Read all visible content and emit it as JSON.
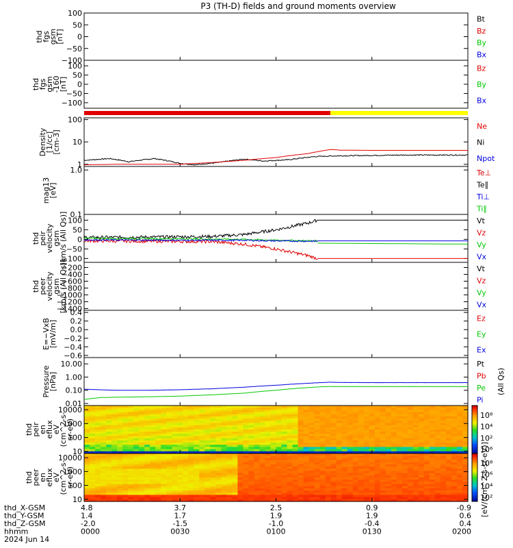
{
  "title": "P3 (TH-D) fields and ground moments overview",
  "colors": {
    "red": "#e00000",
    "green": "#00c800",
    "blue": "#0000e0",
    "black": "#000000",
    "yellow": "#ffff00",
    "cyan": "#00a0a0"
  },
  "chart_data": {
    "type": "line",
    "time": {
      "x_range": [
        0,
        120
      ],
      "unit": "minutes after 0000",
      "ticks": [
        0,
        30,
        60,
        90,
        120
      ],
      "tick_labels": [
        "0000",
        "0030",
        "0100",
        "0130",
        "0200"
      ]
    },
    "ephemeris": {
      "rows": [
        {
          "label": "thd_X-GSM",
          "values": [
            "4.8",
            "3.7",
            "2.5",
            "0.9",
            "-0.9"
          ]
        },
        {
          "label": "thd_Y-GSM",
          "values": [
            "1.4",
            "1.7",
            "1.9",
            "1.9",
            "0.6"
          ]
        },
        {
          "label": "thd_Z-GSM",
          "values": [
            "-2.0",
            "-1.5",
            "-1.0",
            "-0.4",
            "0.4"
          ]
        },
        {
          "label": "hhmm",
          "values": [
            "0000",
            "0030",
            "0100",
            "0130",
            "0200"
          ]
        }
      ],
      "date": "2024 Jun 14"
    },
    "panels": [
      {
        "id": "fgs",
        "ylabel": [
          "thd",
          "fgs",
          "gsm",
          "[nT]"
        ],
        "ylim": [
          -100,
          100
        ],
        "ticks": [
          100,
          50,
          0,
          -50,
          -100
        ],
        "tick_labels": [
          "100",
          "50",
          "0",
          "−50",
          "−100"
        ],
        "legend": [
          {
            "name": "Bt",
            "color": "black"
          },
          {
            "name": "Bz",
            "color": "red"
          },
          {
            "name": "By",
            "color": "green"
          },
          {
            "name": "Bx",
            "color": "blue"
          }
        ],
        "series": []
      },
      {
        "id": "fgs_detrend",
        "ylabel": [
          "thd",
          "fgs",
          "gsm",
          "-160",
          "[nT]"
        ],
        "ylim": [
          -130,
          130
        ],
        "ticks": [
          100,
          50,
          0,
          -50,
          -100
        ],
        "tick_labels": [
          "100",
          "50",
          "0",
          "−50",
          "−100"
        ],
        "legend": [
          {
            "name": "Bz",
            "color": "red"
          },
          {
            "name": "By",
            "color": "green"
          },
          {
            "name": "Bx",
            "color": "blue"
          }
        ],
        "series": []
      },
      {
        "id": "density",
        "ylabel": [
          "Density",
          "[1/cc]",
          "[cm-3]"
        ],
        "scale": "log",
        "ylim": [
          0.8,
          120
        ],
        "ticks": [
          100,
          10,
          1
        ],
        "tick_labels": [
          "100",
          "10",
          "1"
        ],
        "legend": [
          {
            "name": "Ne",
            "color": "red"
          },
          {
            "name": "Ni",
            "color": "black"
          },
          {
            "name": "Npot",
            "color": "blue"
          }
        ],
        "series": [
          {
            "name": "Ni",
            "color": "black",
            "noise": 0.05,
            "points": [
              [
                0,
                1.5
              ],
              [
                8,
                1.8
              ],
              [
                14,
                1.3
              ],
              [
                22,
                1.8
              ],
              [
                30,
                1.1
              ],
              [
                35,
                0.95
              ],
              [
                42,
                1.2
              ],
              [
                50,
                1.7
              ],
              [
                56,
                1.4
              ],
              [
                64,
                1.6
              ],
              [
                72,
                2.2
              ],
              [
                75,
                2.3
              ],
              [
                80,
                2.4
              ],
              [
                90,
                2.5
              ],
              [
                100,
                2.6
              ],
              [
                110,
                2.6
              ],
              [
                120,
                2.6
              ]
            ]
          },
          {
            "name": "Ne",
            "color": "red",
            "noise": 0,
            "points": [
              [
                0,
                0.95
              ],
              [
                10,
                1.0
              ],
              [
                20,
                1.0
              ],
              [
                30,
                1.0
              ],
              [
                40,
                1.2
              ],
              [
                50,
                1.5
              ],
              [
                60,
                2.0
              ],
              [
                70,
                3.0
              ],
              [
                75,
                4.1
              ],
              [
                77,
                4.6
              ],
              [
                80,
                4.3
              ],
              [
                90,
                4.2
              ],
              [
                100,
                4.2
              ],
              [
                110,
                4.2
              ],
              [
                120,
                4.2
              ]
            ]
          }
        ]
      },
      {
        "id": "temperature",
        "ylabel": [
          "mag13",
          "[eV]"
        ],
        "scale": "log",
        "ylim": [
          0.1,
          1.2
        ],
        "ticks": [
          1.0,
          0.1
        ],
        "tick_labels": [
          "1.0",
          "0.1"
        ],
        "legend": [
          {
            "name": "Te⊥",
            "color": "red"
          },
          {
            "name": "Te∥",
            "color": "black"
          },
          {
            "name": "Ti⊥",
            "color": "blue"
          },
          {
            "name": "Ti∥",
            "color": "green"
          }
        ],
        "series": []
      },
      {
        "id": "peir_velocity",
        "ylabel": [
          "thd",
          "peir",
          "velocity",
          "gsm",
          "[km/s (All Qs)]"
        ],
        "ylim": [
          -120,
          130
        ],
        "ticks": [
          100,
          50,
          0,
          -50,
          -100
        ],
        "tick_labels": [
          "100",
          "50",
          "0",
          "−50",
          "−100"
        ],
        "legend": [
          {
            "name": "Vt",
            "color": "black"
          },
          {
            "name": "Vz",
            "color": "red"
          },
          {
            "name": "Vy",
            "color": "green"
          },
          {
            "name": "Vx",
            "color": "blue"
          }
        ],
        "series": [
          {
            "name": "Vt",
            "color": "black",
            "noise": 8,
            "end": 73,
            "points": [
              [
                0,
                10
              ],
              [
                20,
                12
              ],
              [
                40,
                15
              ],
              [
                50,
                25
              ],
              [
                60,
                50
              ],
              [
                70,
                85
              ],
              [
                73,
                100
              ]
            ]
          },
          {
            "name": "Vz",
            "color": "red",
            "noise": 8,
            "end": 73,
            "points": [
              [
                0,
                -8
              ],
              [
                20,
                -10
              ],
              [
                40,
                -12
              ],
              [
                50,
                -25
              ],
              [
                60,
                -50
              ],
              [
                70,
                -85
              ],
              [
                73,
                -100
              ]
            ]
          },
          {
            "name": "Vy",
            "color": "green",
            "noise": 4,
            "end": 73,
            "points": [
              [
                0,
                5
              ],
              [
                30,
                3
              ],
              [
                50,
                0
              ],
              [
                60,
                -5
              ],
              [
                73,
                -8
              ]
            ]
          },
          {
            "name": "Vx",
            "color": "blue",
            "noise": 4,
            "end": 73,
            "points": [
              [
                0,
                -3
              ],
              [
                30,
                -5
              ],
              [
                50,
                -5
              ],
              [
                60,
                -8
              ],
              [
                73,
                -10
              ]
            ]
          },
          {
            "name": "Vt-fill",
            "color": "black",
            "noise": 0,
            "points": [
              [
                73,
                100
              ],
              [
                120,
                100
              ]
            ]
          },
          {
            "name": "Vz-fill",
            "color": "red",
            "noise": 0,
            "points": [
              [
                73,
                -100
              ],
              [
                120,
                -100
              ]
            ]
          },
          {
            "name": "Vy-fill",
            "color": "green",
            "noise": 0,
            "points": [
              [
                73,
                -20
              ],
              [
                120,
                -25
              ]
            ]
          },
          {
            "name": "Vx-fill",
            "color": "blue",
            "noise": 0,
            "points": [
              [
                73,
                -8
              ],
              [
                120,
                -8
              ]
            ]
          }
        ]
      },
      {
        "id": "peer_velocity",
        "ylabel": [
          "thd",
          "peer",
          "velocity",
          "gsm",
          "[km/s (All Qs)]"
        ],
        "ylim": [
          -1450,
          -50
        ],
        "ticks": [
          -200,
          -400,
          -600,
          -800,
          -1000,
          -1200,
          -1400
        ],
        "tick_labels": [
          "−200",
          "−400",
          "−600",
          "−800",
          "−1000",
          "−1200",
          "−1400"
        ],
        "legend": [
          {
            "name": "Vt",
            "color": "black"
          },
          {
            "name": "Vz",
            "color": "red"
          },
          {
            "name": "Vy",
            "color": "green"
          },
          {
            "name": "Vx",
            "color": "blue"
          }
        ],
        "series": []
      },
      {
        "id": "efield",
        "ylabel": [
          "E=−VxB",
          "[mV/m]"
        ],
        "ylim": [
          -0.65,
          0.45
        ],
        "ticks": [
          0.4,
          0.2,
          0.0,
          -0.2,
          -0.4,
          -0.6
        ],
        "tick_labels": [
          "0.4",
          "0.2",
          "0.0",
          "−0.2",
          "−0.4",
          "−0.6"
        ],
        "legend": [
          {
            "name": "Ez",
            "color": "red"
          },
          {
            "name": "Ey",
            "color": "green"
          },
          {
            "name": "Ex",
            "color": "blue"
          }
        ],
        "series": []
      },
      {
        "id": "pressure",
        "ylabel": [
          "Pressure",
          "[nPa]"
        ],
        "scale": "log",
        "ylim": [
          0.007,
          30
        ],
        "ticks": [
          10,
          1,
          0.1,
          0.01
        ],
        "tick_labels": [
          "10.00",
          "1.00",
          "0.10",
          "0.01"
        ],
        "legend": [
          {
            "name": "Pt",
            "color": "black"
          },
          {
            "name": "Pb",
            "color": "red"
          },
          {
            "name": "Pe",
            "color": "green"
          },
          {
            "name": "Pi",
            "color": "blue"
          }
        ],
        "legend_side_label": "(All Qs)",
        "series": [
          {
            "name": "Pi",
            "color": "blue",
            "noise": 0.01,
            "points": [
              [
                0,
                0.12
              ],
              [
                10,
                0.1
              ],
              [
                20,
                0.1
              ],
              [
                30,
                0.11
              ],
              [
                40,
                0.13
              ],
              [
                50,
                0.17
              ],
              [
                60,
                0.24
              ],
              [
                68,
                0.32
              ],
              [
                74,
                0.38
              ],
              [
                77,
                0.41
              ],
              [
                80,
                0.39
              ],
              [
                90,
                0.38
              ],
              [
                100,
                0.38
              ],
              [
                110,
                0.38
              ],
              [
                120,
                0.38
              ]
            ]
          },
          {
            "name": "Pe",
            "color": "green",
            "noise": 0.005,
            "points": [
              [
                0,
                0.02
              ],
              [
                5,
                0.028
              ],
              [
                10,
                0.03
              ],
              [
                20,
                0.032
              ],
              [
                30,
                0.036
              ],
              [
                40,
                0.045
              ],
              [
                50,
                0.06
              ],
              [
                60,
                0.1
              ],
              [
                70,
                0.16
              ],
              [
                75,
                0.19
              ],
              [
                80,
                0.19
              ],
              [
                90,
                0.19
              ],
              [
                100,
                0.19
              ],
              [
                110,
                0.19
              ],
              [
                120,
                0.19
              ]
            ]
          }
        ]
      },
      {
        "id": "peir_en_eflux",
        "type": "heatmap",
        "ylabel": [
          "thd",
          "peir",
          "en",
          "eflux",
          "eV",
          "(cm^2-s-",
          "sr-eV)"
        ],
        "scale": "log",
        "ylim": [
          7,
          20000
        ],
        "ticks": [
          10000,
          1000,
          100,
          10
        ],
        "tick_labels": [
          "10000",
          "1000",
          "100",
          "10"
        ],
        "colorbar": {
          "ticks": [
            "10⁸",
            "10⁴",
            "10²",
            "10⁶"
          ],
          "label": "[eV/(cm^2-s-sr-eV)] (All Qs)"
        }
      },
      {
        "id": "peer_en_eflux",
        "type": "heatmap",
        "ylabel": [
          "thd",
          "peer",
          "en",
          "eflux",
          "eV",
          "(cm^2-s-",
          "sr-eV)"
        ],
        "scale": "log",
        "ylim": [
          7,
          20000
        ],
        "ticks": [
          10000,
          1000,
          100,
          10
        ],
        "tick_labels": [
          "10000",
          "1000",
          "100",
          "10"
        ],
        "colorbar": {
          "ticks": [
            "10⁸",
            "10⁶",
            "10⁴",
            "10²"
          ],
          "label": "[eV/(cm^2-s-sr-eV)]"
        }
      }
    ],
    "status_bar": [
      {
        "from": 0,
        "to": 77,
        "color": "red"
      },
      {
        "from": 77,
        "to": 120,
        "color": "yellow"
      }
    ]
  }
}
